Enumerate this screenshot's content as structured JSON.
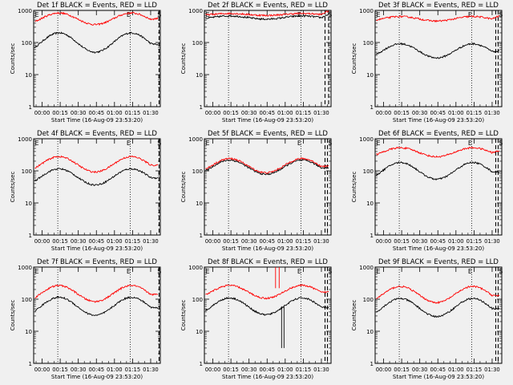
{
  "chart_data": [
    {
      "type": "line",
      "title": "Det 1f BLACK = Events, RED = LLD",
      "xlabel": "Start Time (16-Aug-09 23:53:20)",
      "ylabel": "Counts/sec",
      "yscale": "log",
      "ylim": [
        1,
        1000
      ],
      "yticks": [
        "1",
        "10",
        "100",
        "1000"
      ],
      "xticks": [
        "00:00",
        "00:15",
        "00:30",
        "00:45",
        "01:00",
        "01:15",
        "01:30"
      ],
      "xlim_min": [
        -7,
        98
      ],
      "markers": {
        "dotted_min": [
          13,
          73
        ],
        "dashed_min": [
          97
        ],
        "letters": [
          "E",
          "E",
          "S"
        ]
      },
      "series": [
        {
          "name": "Events",
          "color": "#000000",
          "base": 100,
          "amp": 0.3
        },
        {
          "name": "LLD",
          "color": "#ff0000",
          "base": 550,
          "amp": 0.18
        }
      ]
    },
    {
      "type": "line",
      "title": "Det 2f BLACK = Events, RED = LLD",
      "xlabel": "Start Time (16-Aug-09 23:53:20)",
      "ylabel": "Counts/sec",
      "yscale": "log",
      "ylim": [
        1,
        1000
      ],
      "yticks": [
        "1",
        "10",
        "100",
        "1000"
      ],
      "xticks": [
        "00:00",
        "00:15",
        "00:30",
        "00:45",
        "01:00",
        "01:15",
        "01:30"
      ],
      "xlim_min": [
        -7,
        98
      ],
      "markers": {
        "dotted_min": [
          13,
          73
        ],
        "dashed_min": [
          93,
          96
        ],
        "letters": [
          "E",
          "E",
          "S"
        ]
      },
      "series": [
        {
          "name": "Events",
          "color": "#000000",
          "base": 600,
          "amp": 0.05
        },
        {
          "name": "LLD",
          "color": "#ff0000",
          "base": 750,
          "amp": 0.03
        }
      ]
    },
    {
      "type": "line",
      "title": "Det 3f BLACK = Events, RED = LLD",
      "xlabel": "Start Time (16-Aug-09 23:53:20)",
      "ylabel": "Counts/sec",
      "yscale": "log",
      "ylim": [
        1,
        1000
      ],
      "yticks": [
        "1",
        "10",
        "100",
        "1000"
      ],
      "xticks": [
        "00:00",
        "00:15",
        "00:30",
        "00:45",
        "01:00",
        "01:15",
        "01:30"
      ],
      "xlim_min": [
        -7,
        98
      ],
      "markers": {
        "dotted_min": [
          13,
          73
        ],
        "dashed_min": [
          93,
          95
        ],
        "letters": [
          "E",
          "E",
          "S"
        ]
      },
      "series": [
        {
          "name": "Events",
          "color": "#000000",
          "base": 55,
          "amp": 0.22
        },
        {
          "name": "LLD",
          "color": "#ff0000",
          "base": 550,
          "amp": 0.07
        }
      ]
    },
    {
      "type": "line",
      "title": "Det 4f BLACK = Events, RED = LLD",
      "xlabel": "Start Time (16-Aug-09 23:53:20)",
      "ylabel": "Counts/sec",
      "yscale": "log",
      "ylim": [
        1,
        1000
      ],
      "yticks": [
        "1",
        "10",
        "100",
        "1000"
      ],
      "xticks": [
        "00:00",
        "00:15",
        "00:30",
        "00:45",
        "01:00",
        "01:15",
        "01:30"
      ],
      "xlim_min": [
        -7,
        98
      ],
      "markers": {
        "dotted_min": [
          13,
          73
        ],
        "dashed_min": [
          97
        ],
        "letters": [
          "E",
          "E",
          "S"
        ]
      },
      "series": [
        {
          "name": "Events",
          "color": "#000000",
          "base": 65,
          "amp": 0.25
        },
        {
          "name": "LLD",
          "color": "#ff0000",
          "base": 160,
          "amp": 0.24
        }
      ]
    },
    {
      "type": "line",
      "title": "Det 5f BLACK = Events, RED = LLD",
      "xlabel": "Start Time (16-Aug-09 23:53:20)",
      "ylabel": "Counts/sec",
      "yscale": "log",
      "ylim": [
        1,
        1000
      ],
      "yticks": [
        "1",
        "10",
        "100",
        "1000"
      ],
      "xticks": [
        "00:00",
        "00:15",
        "00:30",
        "00:45",
        "01:00",
        "01:15",
        "01:30"
      ],
      "xlim_min": [
        -7,
        98
      ],
      "markers": {
        "dotted_min": [
          13,
          73
        ],
        "dashed_min": [
          93,
          95
        ],
        "letters": [
          "E",
          "E",
          "S"
        ]
      },
      "series": [
        {
          "name": "Events",
          "color": "#000000",
          "base": 130,
          "amp": 0.22
        },
        {
          "name": "LLD",
          "color": "#ff0000",
          "base": 145,
          "amp": 0.22
        }
      ]
    },
    {
      "type": "line",
      "title": "Det 6f BLACK = Events, RED = LLD",
      "xlabel": "Start Time (16-Aug-09 23:53:20)",
      "ylabel": "Counts/sec",
      "yscale": "log",
      "ylim": [
        1,
        1000
      ],
      "yticks": [
        "1",
        "10",
        "100",
        "1000"
      ],
      "xticks": [
        "00:00",
        "00:15",
        "00:30",
        "00:45",
        "01:00",
        "01:15",
        "01:30"
      ],
      "xlim_min": [
        -7,
        98
      ],
      "markers": {
        "dotted_min": [
          13,
          73
        ],
        "dashed_min": [
          93,
          95
        ],
        "letters": [
          "E",
          "E",
          "S"
        ]
      },
      "series": [
        {
          "name": "Events",
          "color": "#000000",
          "base": 100,
          "amp": 0.26
        },
        {
          "name": "LLD",
          "color": "#ff0000",
          "base": 380,
          "amp": 0.14
        }
      ]
    },
    {
      "type": "line",
      "title": "Det 7f BLACK = Events, RED = LLD",
      "xlabel": "Start Time (16-Aug-09 23:53:20)",
      "ylabel": "Counts/sec",
      "yscale": "log",
      "ylim": [
        1,
        1000
      ],
      "yticks": [
        "1",
        "10",
        "100",
        "1000"
      ],
      "xticks": [
        "00:00",
        "00:15",
        "00:30",
        "00:45",
        "01:00",
        "01:15",
        "01:30"
      ],
      "xlim_min": [
        -7,
        98
      ],
      "markers": {
        "dotted_min": [
          13,
          73
        ],
        "dashed_min": [
          97
        ],
        "letters": [
          "E",
          "E",
          "S"
        ]
      },
      "series": [
        {
          "name": "Events",
          "color": "#000000",
          "base": 60,
          "amp": 0.28
        },
        {
          "name": "LLD",
          "color": "#ff0000",
          "base": 150,
          "amp": 0.25
        }
      ]
    },
    {
      "type": "line",
      "title": "Det 8f BLACK = Events, RED = LLD",
      "xlabel": "Start Time (16-Aug-09 23:53:20)",
      "ylabel": "Counts/sec",
      "yscale": "log",
      "ylim": [
        1,
        1000
      ],
      "yticks": [
        "1",
        "10",
        "100",
        "1000"
      ],
      "xticks": [
        "00:00",
        "00:15",
        "00:30",
        "00:45",
        "01:00",
        "01:15",
        "01:30"
      ],
      "xlim_min": [
        -7,
        98
      ],
      "markers": {
        "dotted_min": [
          13,
          73
        ],
        "dashed_min": [
          93,
          95
        ],
        "letters": [
          "E",
          "E",
          "S"
        ]
      },
      "series": [
        {
          "name": "Events",
          "color": "#000000",
          "base": 60,
          "amp": 0.26
        },
        {
          "name": "LLD",
          "color": "#ff0000",
          "base": 170,
          "amp": 0.2
        }
      ]
    },
    {
      "type": "line",
      "title": "Det 9f BLACK = Events, RED = LLD",
      "xlabel": "Start Time (16-Aug-09 23:53:20)",
      "ylabel": "Counts/sec",
      "yscale": "log",
      "ylim": [
        1,
        1000
      ],
      "yticks": [
        "1",
        "10",
        "100",
        "1000"
      ],
      "xticks": [
        "00:00",
        "00:15",
        "00:30",
        "00:45",
        "01:00",
        "01:15",
        "01:30"
      ],
      "xlim_min": [
        -7,
        98
      ],
      "markers": {
        "dotted_min": [
          13,
          73
        ],
        "dashed_min": [
          93,
          95
        ],
        "letters": [
          "E",
          "E",
          "S"
        ]
      },
      "series": [
        {
          "name": "Events",
          "color": "#000000",
          "base": 55,
          "amp": 0.28
        },
        {
          "name": "LLD",
          "color": "#ff0000",
          "base": 140,
          "amp": 0.25
        }
      ]
    }
  ]
}
